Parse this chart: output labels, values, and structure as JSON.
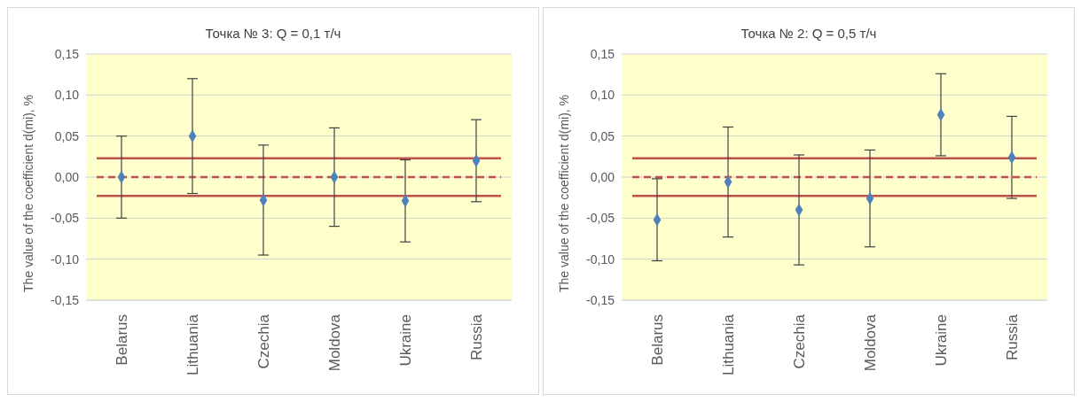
{
  "chart_data": [
    {
      "type": "scatter",
      "title": "Точка № 3: Q = 0,1 т/ч",
      "ylabel": "The value of the coefficient d(mi), %",
      "categories": [
        "Belarus",
        "Lithuania",
        "Czechia",
        "Moldova",
        "Ukraine",
        "Russia"
      ],
      "series": [
        {
          "color": "#4f81bd",
          "values": [
            0,
            0.05,
            -0.028,
            0,
            -0.029,
            0.02
          ],
          "errors": [
            0.05,
            0.07,
            0.067,
            0.06,
            0.05,
            0.05
          ]
        }
      ],
      "ylim": [
        -0.15,
        0.15
      ],
      "yticks": [
        {
          "value": -0.15,
          "label": "-0,15"
        },
        {
          "value": -0.1,
          "label": "-0,10"
        },
        {
          "value": -0.05,
          "label": "-0,05"
        },
        {
          "value": 0,
          "label": "0,00"
        },
        {
          "value": 0.05,
          "label": "0,05"
        },
        {
          "value": 0.1,
          "label": "0,10"
        },
        {
          "value": 0.15,
          "label": "0,15"
        }
      ],
      "ref_lines": [
        {
          "axis": "y",
          "value": 0.023,
          "color": "#c0504d",
          "line_style": "solid"
        },
        {
          "axis": "y",
          "value": 0,
          "color": "#c0504d",
          "line_style": "dashed"
        },
        {
          "axis": "y",
          "value": -0.023,
          "color": "#c0504d",
          "line_style": "solid"
        }
      ],
      "grid": "y",
      "marker": "diamond",
      "legend": false
    },
    {
      "type": "scatter",
      "title": "Точка № 2: Q = 0,5 т/ч",
      "ylabel": "The value of the coefficient d(mi), %",
      "categories": [
        "Belarus",
        "Lithuania",
        "Czechia",
        "Moldova",
        "Ukraine",
        "Russia"
      ],
      "series": [
        {
          "color": "#4f81bd",
          "values": [
            -0.052,
            -0.006,
            -0.04,
            -0.026,
            0.076,
            0.024
          ],
          "errors": [
            0.05,
            0.067,
            0.067,
            0.059,
            0.05,
            0.05
          ]
        }
      ],
      "ylim": [
        -0.15,
        0.15
      ],
      "yticks": [
        {
          "value": -0.15,
          "label": "-0,15"
        },
        {
          "value": -0.1,
          "label": "-0,10"
        },
        {
          "value": -0.05,
          "label": "-0,05"
        },
        {
          "value": 0,
          "label": "0,00"
        },
        {
          "value": 0.05,
          "label": "0,05"
        },
        {
          "value": 0.1,
          "label": "0,10"
        },
        {
          "value": 0.15,
          "label": "0,15"
        }
      ],
      "ref_lines": [
        {
          "axis": "y",
          "value": 0.023,
          "color": "#c0504d",
          "line_style": "solid"
        },
        {
          "axis": "y",
          "value": 0,
          "color": "#c0504d",
          "line_style": "dashed"
        },
        {
          "axis": "y",
          "value": -0.023,
          "color": "#c0504d",
          "line_style": "solid"
        }
      ],
      "grid": "y",
      "marker": "diamond",
      "legend": false
    }
  ]
}
